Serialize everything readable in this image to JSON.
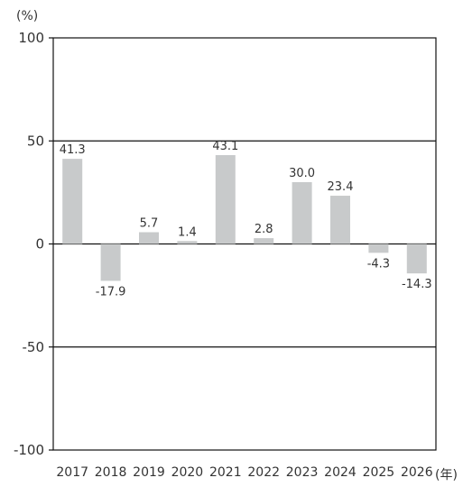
{
  "chart_data": {
    "type": "bar",
    "y_unit": "(%)",
    "x_unit": "(年)",
    "categories": [
      "2017",
      "2018",
      "2019",
      "2020",
      "2021",
      "2022",
      "2023",
      "2024",
      "2025",
      "2026"
    ],
    "values": [
      41.3,
      -17.9,
      5.7,
      1.4,
      43.1,
      2.8,
      30.0,
      23.4,
      -4.3,
      -14.3
    ],
    "value_labels": [
      "41.3",
      "-17.9",
      "5.7",
      "1.4",
      "43.1",
      "2.8",
      "30.0",
      "23.4",
      "-4.3",
      "-14.3"
    ],
    "yticks": [
      100,
      50,
      0,
      -50,
      -100
    ],
    "ytick_labels": [
      "100",
      "50",
      "0",
      "-50",
      "-100"
    ],
    "ylim": [
      -100,
      100
    ],
    "gridlines": [
      50,
      0,
      -50
    ],
    "bar_color": "#c8cacb",
    "line_color": "#111111",
    "title": "",
    "xlabel": "",
    "ylabel": ""
  }
}
